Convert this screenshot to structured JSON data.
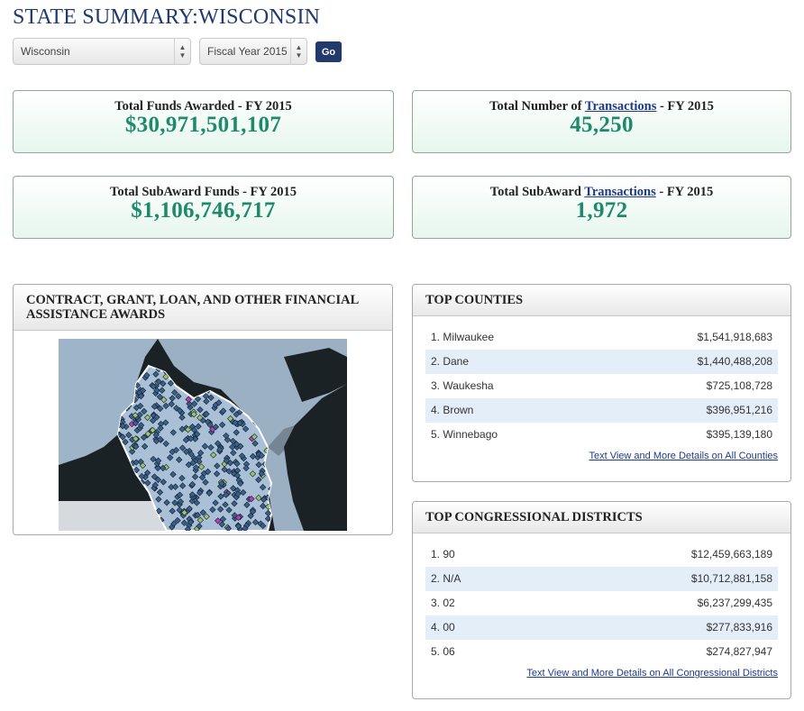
{
  "page_title": "STATE SUMMARY:WISCONSIN",
  "selectors": {
    "state": "Wisconsin",
    "fiscal_year": "Fiscal Year 2015",
    "go_label": "Go"
  },
  "stats": {
    "total_funds": {
      "label": "Total Funds Awarded - FY 2015",
      "value": "$30,971,501,107"
    },
    "total_transactions": {
      "label_prefix": "Total Number of ",
      "link": "Transactions",
      "label_suffix": " - FY 2015",
      "value": "45,250"
    },
    "subaward_funds": {
      "label": "Total SubAward Funds - FY 2015",
      "value": "$1,106,746,717"
    },
    "subaward_transactions": {
      "label_prefix": "Total SubAward ",
      "link": "Transactions",
      "label_suffix": " - FY 2015",
      "value": "1,972"
    }
  },
  "map_panel": {
    "title": "CONTRACT, GRANT, LOAN, AND OTHER FINANCIAL ASSISTANCE AWARDS"
  },
  "top_counties": {
    "title": "TOP COUNTIES",
    "rows": [
      {
        "name": "1. Milwaukee",
        "amount": "$1,541,918,683"
      },
      {
        "name": "2. Dane",
        "amount": "$1,440,488,208"
      },
      {
        "name": "3. Waukesha",
        "amount": "$725,108,728"
      },
      {
        "name": "4. Brown",
        "amount": "$396,951,216"
      },
      {
        "name": "5. Winnebago",
        "amount": "$395,139,180"
      }
    ],
    "more_link": "Text View and More Details on All Counties"
  },
  "top_districts": {
    "title": "TOP CONGRESSIONAL DISTRICTS",
    "rows": [
      {
        "name": "1. 90",
        "amount": "$12,459,663,189"
      },
      {
        "name": "2. N/A",
        "amount": "$10,712,881,158"
      },
      {
        "name": "3. 02",
        "amount": "$6,237,299,435"
      },
      {
        "name": "4. 00",
        "amount": "$277,833,916"
      },
      {
        "name": "5. 06",
        "amount": "$274,827,947"
      }
    ],
    "more_link": "Text View and More Details on All Congressional Districts"
  },
  "colors": {
    "title_blue": "#1f3a6b",
    "stat_value_green": "#1e8a6c",
    "row_alt_blue": "#e3eef9",
    "map_marker_blue": "#3a5f8a",
    "map_marker_green": "#9cc26a",
    "map_marker_magenta": "#c33ab8"
  }
}
